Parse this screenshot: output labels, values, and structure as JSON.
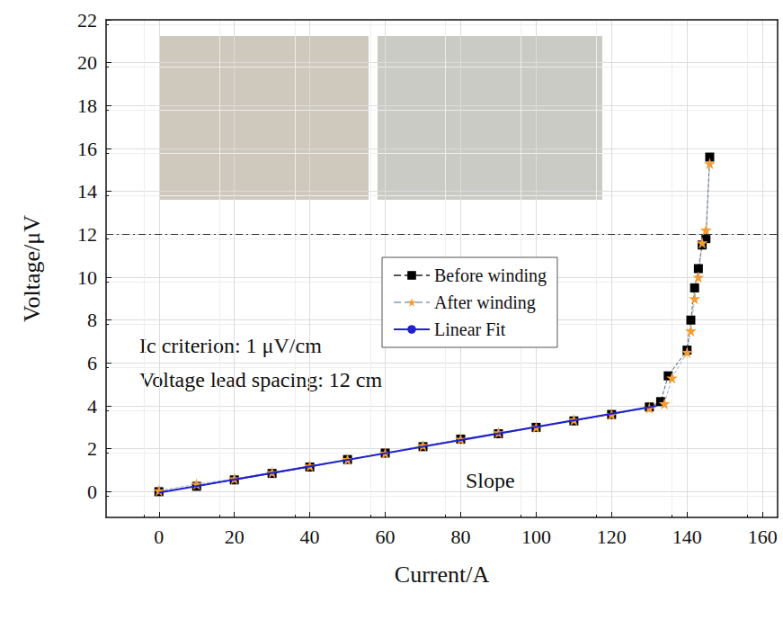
{
  "chart_data": {
    "type": "line",
    "x_label": "Current/A",
    "y_label": "Voltage/μV",
    "xlim": [
      -14,
      164
    ],
    "xticks": [
      0,
      20,
      40,
      60,
      80,
      100,
      120,
      140,
      160
    ],
    "ylim": [
      -1.2,
      22
    ],
    "yticks": [
      0,
      2,
      4,
      6,
      8,
      10,
      12,
      14,
      16,
      18,
      20,
      22
    ],
    "grid": true,
    "legend": "center",
    "annotations": [
      "Ic criterion: 1 μV/cm",
      "Voltage lead spacing: 12 cm",
      "Slope"
    ],
    "reference_lines": [
      {
        "y": 12,
        "line_style": "dashdot",
        "color": "#333333"
      }
    ],
    "series": [
      {
        "name": "Before winding",
        "color": "#000000",
        "marker": "square",
        "line_style": "dashed",
        "x": [
          0,
          10,
          20,
          30,
          40,
          50,
          60,
          70,
          80,
          90,
          100,
          110,
          120,
          130,
          133,
          135,
          140,
          141,
          142,
          143,
          144,
          145,
          146
        ],
        "values": [
          0,
          0.25,
          0.55,
          0.85,
          1.15,
          1.5,
          1.8,
          2.1,
          2.45,
          2.7,
          3.0,
          3.3,
          3.6,
          3.95,
          4.2,
          5.4,
          6.6,
          8.0,
          9.5,
          10.4,
          11.5,
          11.8,
          15.6
        ]
      },
      {
        "name": "After winding",
        "color": "#f39c35",
        "marker": "star",
        "line_style": "dashed",
        "x": [
          0,
          10,
          20,
          30,
          40,
          50,
          60,
          70,
          80,
          90,
          100,
          110,
          120,
          130,
          134,
          136,
          140,
          141,
          142,
          143,
          144,
          145,
          146
        ],
        "values": [
          0.05,
          0.35,
          0.6,
          0.9,
          1.2,
          1.5,
          1.8,
          2.15,
          2.45,
          2.75,
          3.0,
          3.35,
          3.6,
          3.9,
          4.1,
          5.3,
          6.5,
          7.5,
          9.0,
          10.0,
          11.6,
          12.2,
          15.3
        ]
      },
      {
        "name": "Linear Fit",
        "color": "#2222cc",
        "marker": "none",
        "line_style": "solid",
        "x": [
          0,
          132
        ],
        "values": [
          -0.05,
          4.0
        ]
      }
    ]
  }
}
